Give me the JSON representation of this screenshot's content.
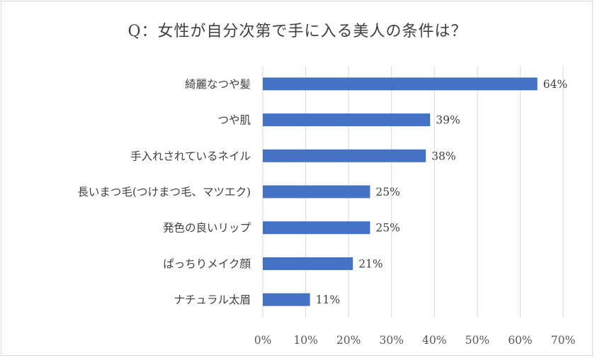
{
  "chart_data": {
    "type": "bar",
    "orientation": "horizontal",
    "title": "Q：女性が自分次第で手に入る美人の条件は？",
    "categories": [
      "綺麗なつや髪",
      "つや肌",
      "手入れされているネイル",
      "長いまつ毛(つけまつ毛、マツエク)",
      "発色の良いリップ",
      "ぱっちりメイク顔",
      "ナチュラル太眉"
    ],
    "values": [
      0.64,
      0.39,
      0.38,
      0.25,
      0.25,
      0.21,
      0.11
    ],
    "value_labels": [
      "64%",
      "39%",
      "38%",
      "25%",
      "25%",
      "21%",
      "11%"
    ],
    "xlim": [
      0,
      0.7
    ],
    "xticks": [
      0,
      0.1,
      0.2,
      0.3,
      0.4,
      0.5,
      0.6,
      0.7
    ],
    "xtick_labels": [
      "0%",
      "10%",
      "20%",
      "30%",
      "40%",
      "50%",
      "60%",
      "70%"
    ],
    "bar_color": "#4472c4",
    "grid": true,
    "legend": "none"
  }
}
